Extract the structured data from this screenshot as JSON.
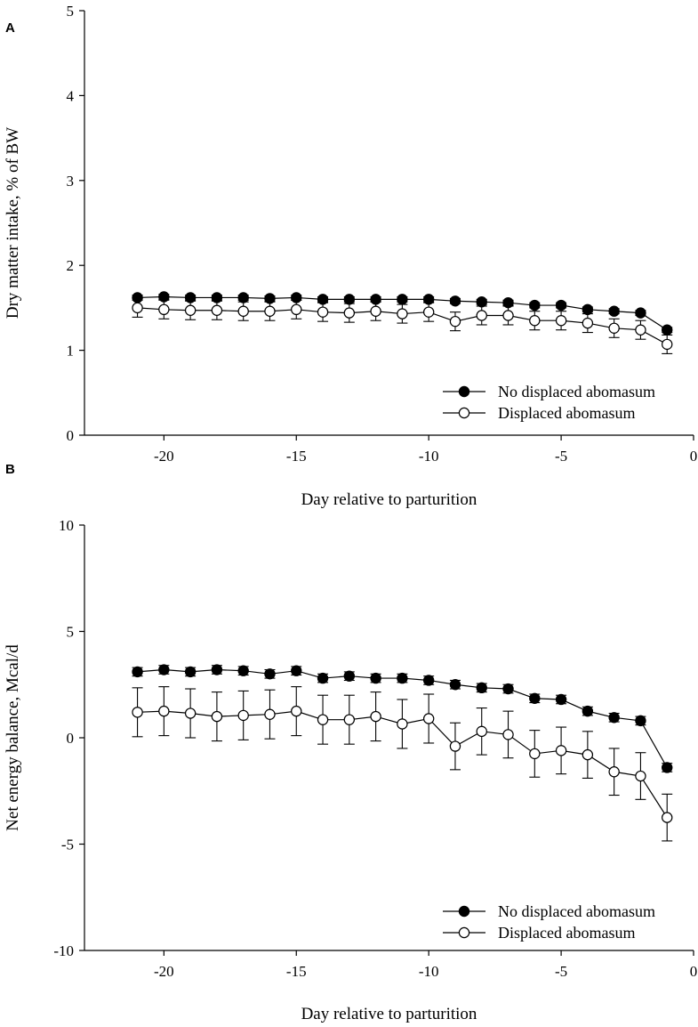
{
  "chart_data": [
    {
      "panel": "A",
      "type": "line",
      "xlabel": "Day relative to parturition",
      "ylabel": "Dry matter intake, % of BW",
      "xlim": [
        -23,
        0
      ],
      "ylim": [
        0,
        5
      ],
      "xticks": [
        -20,
        -15,
        -10,
        -5,
        0
      ],
      "yticks": [
        0,
        1,
        2,
        3,
        4,
        5
      ],
      "legend_position": "bottom-right",
      "x": [
        -21,
        -20,
        -19,
        -18,
        -17,
        -16,
        -15,
        -14,
        -13,
        -12,
        -11,
        -10,
        -9,
        -8,
        -7,
        -6,
        -5,
        -4,
        -3,
        -2,
        -1
      ],
      "series": [
        {
          "name": "No displaced abomasum",
          "marker": "filled",
          "values": [
            1.62,
            1.63,
            1.62,
            1.62,
            1.62,
            1.61,
            1.62,
            1.6,
            1.6,
            1.6,
            1.6,
            1.6,
            1.58,
            1.57,
            1.56,
            1.53,
            1.53,
            1.48,
            1.46,
            1.44,
            1.24
          ],
          "errors": [
            0.03,
            0.03,
            0.03,
            0.03,
            0.03,
            0.03,
            0.03,
            0.03,
            0.03,
            0.03,
            0.03,
            0.03,
            0.03,
            0.03,
            0.03,
            0.03,
            0.03,
            0.03,
            0.03,
            0.03,
            0.03
          ]
        },
        {
          "name": "Displaced abomasum",
          "marker": "open",
          "values": [
            1.5,
            1.48,
            1.47,
            1.47,
            1.46,
            1.46,
            1.48,
            1.45,
            1.44,
            1.46,
            1.43,
            1.45,
            1.34,
            1.41,
            1.41,
            1.35,
            1.35,
            1.32,
            1.26,
            1.24,
            1.07
          ],
          "errors": [
            0.11,
            0.11,
            0.11,
            0.11,
            0.11,
            0.11,
            0.11,
            0.11,
            0.11,
            0.11,
            0.11,
            0.11,
            0.11,
            0.11,
            0.11,
            0.11,
            0.11,
            0.11,
            0.11,
            0.11,
            0.11
          ]
        }
      ]
    },
    {
      "panel": "B",
      "type": "line",
      "xlabel": "Day relative to parturition",
      "ylabel": "Net energy balance, Mcal/d",
      "xlim": [
        -23,
        0
      ],
      "ylim": [
        -10,
        10
      ],
      "xticks": [
        -20,
        -15,
        -10,
        -5,
        0
      ],
      "yticks": [
        -10,
        -5,
        0,
        5,
        10
      ],
      "legend_position": "bottom-right",
      "x": [
        -21,
        -20,
        -19,
        -18,
        -17,
        -16,
        -15,
        -14,
        -13,
        -12,
        -11,
        -10,
        -9,
        -8,
        -7,
        -6,
        -5,
        -4,
        -3,
        -2,
        -1
      ],
      "series": [
        {
          "name": "No displaced abomasum",
          "marker": "filled",
          "values": [
            3.1,
            3.2,
            3.1,
            3.2,
            3.15,
            3.0,
            3.15,
            2.8,
            2.9,
            2.8,
            2.8,
            2.7,
            2.5,
            2.35,
            2.3,
            1.85,
            1.8,
            1.25,
            0.95,
            0.8,
            -1.4
          ],
          "errors": [
            0.2,
            0.2,
            0.2,
            0.2,
            0.2,
            0.2,
            0.2,
            0.2,
            0.2,
            0.2,
            0.2,
            0.2,
            0.2,
            0.2,
            0.2,
            0.2,
            0.2,
            0.2,
            0.2,
            0.2,
            0.2
          ]
        },
        {
          "name": "Displaced abomasum",
          "marker": "open",
          "values": [
            1.2,
            1.25,
            1.15,
            1.0,
            1.05,
            1.1,
            1.25,
            0.85,
            0.85,
            1.0,
            0.65,
            0.9,
            -0.4,
            0.3,
            0.15,
            -0.75,
            -0.6,
            -0.8,
            -1.6,
            -1.8,
            -3.75
          ],
          "errors": [
            1.15,
            1.15,
            1.15,
            1.15,
            1.15,
            1.15,
            1.15,
            1.15,
            1.15,
            1.15,
            1.15,
            1.15,
            1.1,
            1.1,
            1.1,
            1.1,
            1.1,
            1.1,
            1.1,
            1.1,
            1.1
          ]
        }
      ]
    }
  ]
}
